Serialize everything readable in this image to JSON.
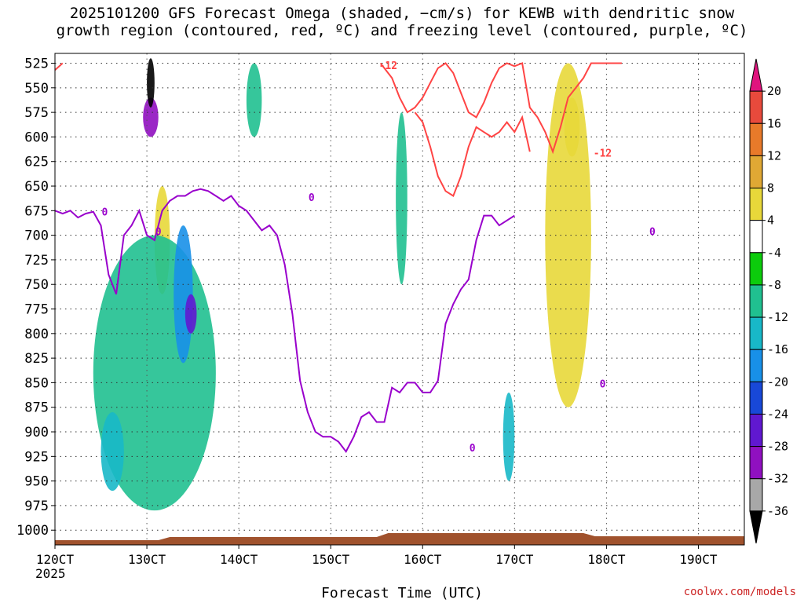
{
  "chart_data": {
    "type": "heatmap",
    "title_line1": "2025101200 GFS Forecast Omega (shaded, −cm/s) for KEWB with dendritic snow",
    "title_line2": "growth region (contoured, red, ºC) and freezing level (contoured, purple, ºC)",
    "xlabel": "Forecast Time (UTC)",
    "x_ticks": [
      "120CT",
      "130CT",
      "140CT",
      "150CT",
      "160CT",
      "170CT",
      "180CT",
      "190CT"
    ],
    "x_year": "2025",
    "xlim_hours": [
      0,
      180
    ],
    "y_ticks": [
      525,
      550,
      575,
      600,
      625,
      650,
      675,
      700,
      725,
      750,
      775,
      800,
      825,
      850,
      875,
      900,
      925,
      950,
      975,
      1000
    ],
    "ylim": [
      1015,
      515
    ],
    "y_inverted": true,
    "grid": true,
    "colorbar": {
      "labels": [
        "20",
        "16",
        "12",
        "8",
        "4",
        "-4",
        "-8",
        "-12",
        "-16",
        "-20",
        "-24",
        "-28",
        "-32",
        "-36"
      ],
      "levels": [
        20,
        16,
        12,
        8,
        4,
        -4,
        -8,
        -12,
        -16,
        -20,
        -24,
        -28,
        -32,
        -36
      ],
      "colors": [
        "#e0147e",
        "#e84a3c",
        "#e87a2a",
        "#e0a834",
        "#e8d83a",
        "#ffffff",
        "#0ccc0c",
        "#20c090",
        "#18b8c8",
        "#1890e8",
        "#1848d8",
        "#6018d0",
        "#9010c0",
        "#a8a8a8",
        "#000000"
      ]
    },
    "freezing_level_contour": {
      "label": "0",
      "color": "#9900cc",
      "x_hours": [
        0,
        2,
        4,
        6,
        8,
        10,
        12,
        14,
        16,
        18,
        20,
        22,
        24,
        26,
        28,
        30,
        32,
        34,
        36,
        38,
        40,
        42,
        44,
        46,
        48,
        50,
        52,
        54,
        56,
        58,
        60,
        62,
        64,
        66,
        68,
        70,
        72,
        74,
        76,
        78,
        80,
        82,
        84,
        86,
        88,
        90,
        92,
        94,
        96,
        98,
        100,
        102,
        104,
        106,
        108,
        110,
        112,
        114,
        116,
        118,
        120,
        122,
        124,
        126,
        128,
        130,
        132,
        134,
        136,
        138,
        140,
        142,
        144,
        146,
        148,
        150,
        152,
        154,
        156,
        158,
        160,
        162,
        164,
        166,
        168,
        170,
        172,
        174,
        176,
        178,
        180
      ],
      "pressure": [
        675,
        678,
        675,
        682,
        678,
        676,
        690,
        740,
        760,
        700,
        690,
        675,
        700,
        705,
        675,
        665,
        660,
        660,
        655,
        653,
        655,
        660,
        665,
        660,
        670,
        675,
        685,
        695,
        690,
        700,
        730,
        780,
        848,
        880,
        900,
        905,
        905,
        910,
        920,
        905,
        885,
        880,
        890,
        890,
        855,
        860,
        850,
        850,
        860,
        860,
        848,
        790,
        770,
        755,
        745,
        705,
        680,
        680,
        690,
        685,
        680
      ]
    },
    "dendritic_growth_contour": {
      "label": "-12",
      "color": "#ff4444",
      "x_hours": [
        85,
        88,
        90,
        92,
        94,
        96,
        98,
        100,
        102,
        104,
        106,
        108,
        110,
        112,
        114,
        116,
        118,
        120,
        122,
        124,
        126,
        128,
        130,
        132,
        134,
        136,
        138,
        140,
        142,
        144,
        146,
        148
      ],
      "pressure_upper": [
        525,
        540,
        560,
        575,
        570,
        560,
        545,
        530,
        525,
        535,
        555,
        575,
        580,
        565,
        545,
        530,
        525,
        528,
        525,
        570,
        580,
        595,
        615,
        590,
        560,
        550,
        540,
        525,
        525,
        525,
        525,
        525
      ],
      "pressure_lower": [
        null,
        null,
        null,
        null,
        575,
        585,
        610,
        640,
        655,
        660,
        640,
        610,
        590,
        595,
        600,
        595,
        585,
        595,
        580,
        615,
        null,
        null,
        null,
        null,
        null,
        null,
        null,
        null,
        null,
        null,
        null,
        null
      ]
    },
    "omega_regions": [
      {
        "band": "-36",
        "hour_range": [
          24,
          26
        ],
        "pressure_range": [
          520,
          570
        ]
      },
      {
        "band": "-28",
        "hour_range": [
          23,
          27
        ],
        "pressure_range": [
          560,
          600
        ]
      },
      {
        "band": "-24",
        "hour_range": [
          34,
          37
        ],
        "pressure_range": [
          760,
          800
        ]
      },
      {
        "band": "-16",
        "hour_range": [
          31,
          36
        ],
        "pressure_range": [
          690,
          830
        ]
      },
      {
        "band": "-12",
        "hour_range": [
          12,
          18
        ],
        "pressure_range": [
          880,
          960
        ]
      },
      {
        "band": "-8",
        "hour_range": [
          10,
          42
        ],
        "pressure_range": [
          700,
          980
        ]
      },
      {
        "band": "-8",
        "hour_range": [
          50,
          54
        ],
        "pressure_range": [
          525,
          600
        ]
      },
      {
        "band": "-8",
        "hour_range": [
          89,
          92
        ],
        "pressure_range": [
          575,
          750
        ]
      },
      {
        "band": "-12",
        "hour_range": [
          117,
          120
        ],
        "pressure_range": [
          860,
          950
        ]
      },
      {
        "band": "8",
        "hour_range": [
          26,
          30
        ],
        "pressure_range": [
          650,
          760
        ]
      },
      {
        "band": "8",
        "hour_range": [
          133,
          137
        ],
        "pressure_range": [
          560,
          620
        ]
      },
      {
        "band": "4",
        "hour_range": [
          128,
          140
        ],
        "pressure_range": [
          525,
          875
        ]
      }
    ],
    "terrain_color": "#a0522d"
  },
  "credit": "coolwx.com/models"
}
